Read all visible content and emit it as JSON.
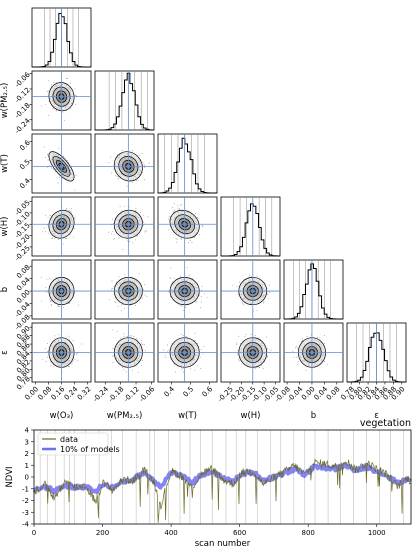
{
  "chart_data": [
    {
      "type": "corner",
      "parameters": [
        {
          "key": "O3",
          "label": "w(O₃)",
          "truth": 0.16,
          "range": [
            -0.02,
            0.34
          ],
          "ticks": [
            "0.00",
            "0.08",
            "0.16",
            "0.24",
            "0.32"
          ],
          "tickvals": [
            0.0,
            0.08,
            0.16,
            0.24,
            0.32
          ],
          "sigma": 0.035
        },
        {
          "key": "PM25",
          "label": "w(PM₂.₅)",
          "truth": -0.15,
          "range": [
            -0.28,
            -0.05
          ],
          "ticks": [
            "-0.24",
            "-0.18",
            "-0.12",
            "-0.06"
          ],
          "tickvals": [
            -0.24,
            -0.18,
            -0.12,
            -0.06
          ],
          "sigma": 0.025
        },
        {
          "key": "T",
          "label": "w(T)",
          "truth": 0.47,
          "range": [
            0.33,
            0.64
          ],
          "ticks": [
            "0.4",
            "0.5",
            "0.6"
          ],
          "tickvals": [
            0.4,
            0.5,
            0.6
          ],
          "sigma": 0.035
        },
        {
          "key": "H",
          "label": "w(H)",
          "truth": -0.15,
          "range": [
            -0.29,
            -0.03
          ],
          "ticks": [
            "-0.25",
            "-0.20",
            "-0.15",
            "-0.10",
            "-0.05"
          ],
          "tickvals": [
            -0.25,
            -0.2,
            -0.15,
            -0.1,
            -0.05
          ],
          "sigma": 0.028
        },
        {
          "key": "b",
          "label": "b",
          "truth": 0.0,
          "range": [
            -0.09,
            0.1
          ],
          "ticks": [
            "-0.08",
            "-0.04",
            "0.00",
            "0.04",
            "0.08"
          ],
          "tickvals": [
            -0.08,
            -0.04,
            0.0,
            0.04,
            0.08
          ],
          "sigma": 0.02
        },
        {
          "key": "eps",
          "label": "ε",
          "truth": 0.84,
          "range": [
            0.77,
            0.91
          ],
          "ticks": [
            "0.78",
            "0.80",
            "0.82",
            "0.84",
            "0.86",
            "0.88",
            "0.90"
          ],
          "tickvals": [
            0.78,
            0.8,
            0.82,
            0.84,
            0.86,
            0.88,
            0.9
          ],
          "sigma": 0.016
        }
      ],
      "row_axis_labels": [
        "w(PM₂.₅)",
        "w(T)",
        "w(H)",
        "b",
        "ε"
      ],
      "correlations": {
        "1-0": -0.05,
        "2-0": -0.72,
        "2-1": -0.1,
        "3-0": 0.12,
        "3-1": 0.05,
        "3-2": -0.18,
        "4-0": 0.0,
        "4-1": 0.0,
        "4-2": 0.0,
        "4-3": 0.0,
        "5-0": 0.0,
        "5-1": 0.0,
        "5-2": 0.0,
        "5-3": 0.0,
        "5-4": 0.0
      },
      "truth_line_color": "#5b8fd6",
      "hist_color": "#000000",
      "quantile_line_color": "#888888"
    },
    {
      "type": "line",
      "title": "vegetation",
      "xlabel": "scan number",
      "ylabel": "NDVI",
      "xlim": [
        0,
        1100
      ],
      "ylim": [
        -4,
        4
      ],
      "xticks": [
        0,
        200,
        400,
        600,
        800,
        1000
      ],
      "yticks": [
        -4,
        -3,
        -2,
        -1,
        0,
        1,
        2,
        3,
        4
      ],
      "legend": "top-left",
      "series": [
        {
          "name": "data",
          "color": "#6b6b2a",
          "x": [
            0,
            30,
            60,
            90,
            120,
            150,
            180,
            200,
            230,
            260,
            290,
            320,
            350,
            370,
            400,
            430,
            460,
            490,
            520,
            550,
            580,
            610,
            640,
            670,
            700,
            730,
            760,
            790,
            820,
            850,
            880,
            910,
            940,
            970,
            1000,
            1030,
            1060,
            1090,
            1100
          ],
          "y": [
            -1.3,
            -0.6,
            -1.8,
            -0.4,
            -0.9,
            -0.7,
            -2.1,
            -0.5,
            -1.1,
            -0.2,
            -0.3,
            0.6,
            -0.4,
            -2.4,
            0.5,
            0.1,
            -0.9,
            0.3,
            0.7,
            -0.2,
            -0.6,
            0.4,
            0.5,
            -0.6,
            0.0,
            0.4,
            1.0,
            0.2,
            1.2,
            1.1,
            0.9,
            1.4,
            0.6,
            1.2,
            0.7,
            0.2,
            -0.8,
            -0.1,
            -0.4
          ]
        },
        {
          "name": "10% of models",
          "color": "#6f70f0",
          "x": [
            0,
            30,
            60,
            90,
            120,
            150,
            180,
            200,
            230,
            260,
            290,
            320,
            350,
            370,
            400,
            430,
            460,
            490,
            520,
            550,
            580,
            610,
            640,
            670,
            700,
            730,
            760,
            790,
            820,
            850,
            880,
            910,
            940,
            970,
            1000,
            1030,
            1060,
            1090,
            1100
          ],
          "y": [
            -1.1,
            -0.8,
            -1.2,
            -0.7,
            -0.9,
            -0.8,
            -1.3,
            -0.6,
            -0.9,
            -0.4,
            -0.2,
            0.4,
            -0.3,
            -0.8,
            0.4,
            0.1,
            -0.5,
            0.2,
            0.5,
            -0.1,
            -0.4,
            0.3,
            0.4,
            -0.3,
            0.0,
            0.3,
            0.7,
            0.2,
            0.9,
            0.8,
            0.7,
            1.0,
            0.5,
            0.9,
            0.5,
            0.1,
            -0.5,
            -0.2,
            -0.3
          ]
        }
      ],
      "vertical_marker_color": "#c0c0c0"
    }
  ]
}
